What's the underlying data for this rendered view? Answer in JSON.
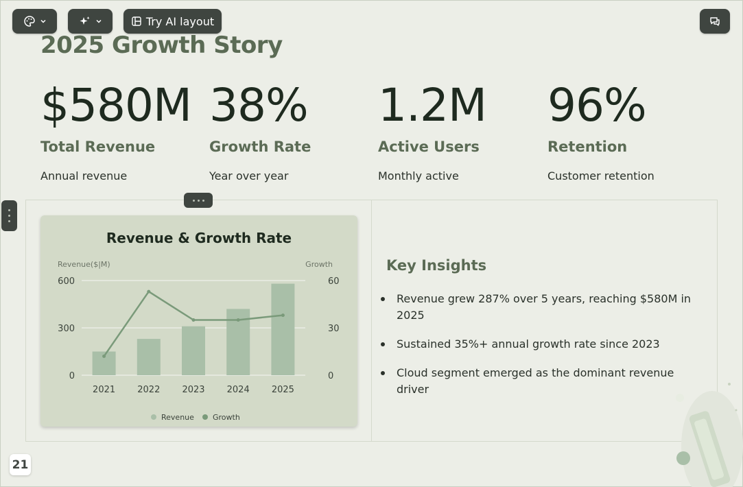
{
  "toolbar": {
    "palette_icon": "palette-icon",
    "magic_icon": "sparkle-icon",
    "ai_layout_label": "Try AI layout",
    "comment_icon": "comment-icon"
  },
  "slide": {
    "title": "2025 Growth Story",
    "page_number": "21",
    "stats": [
      {
        "value": "$580M",
        "label": "Total Revenue",
        "sub": "Annual revenue"
      },
      {
        "value": "38%",
        "label": "Growth Rate",
        "sub": "Year over year"
      },
      {
        "value": "1.2M",
        "label": "Active Users",
        "sub": "Monthly active"
      },
      {
        "value": "96%",
        "label": "Retention",
        "sub": "Customer retention"
      }
    ],
    "insights": {
      "title": "Key Insights",
      "items": [
        "Revenue grew 287% over 5 years, reaching $580M in 2025",
        "Sustained 35%+ annual growth rate since 2023",
        "Cloud segment emerged as the dominant revenue driver"
      ]
    }
  },
  "colors": {
    "bar": "#a9bfa8",
    "line": "#7a9a7a",
    "card": "#d3dac8",
    "accent_text": "#5b6b55"
  },
  "chart_data": {
    "type": "bar+line",
    "title": "Revenue & Growth Rate",
    "ylabel_left": "Revenue($|M)",
    "ylabel_right": "Growth",
    "categories": [
      "2021",
      "2022",
      "2023",
      "2024",
      "2025"
    ],
    "ylim_left": [
      0,
      600
    ],
    "ylim_right": [
      0,
      60
    ],
    "yticks_left": [
      "0",
      "300",
      "600"
    ],
    "yticks_right": [
      "0",
      "30",
      "60"
    ],
    "series": [
      {
        "name": "Revenue",
        "type": "bar",
        "axis": "left",
        "values": [
          150,
          230,
          310,
          420,
          580
        ]
      },
      {
        "name": "Growth",
        "type": "line",
        "axis": "right",
        "values": [
          12,
          53,
          35,
          35,
          38
        ]
      }
    ],
    "grid": true,
    "legend": "bottom-center"
  }
}
